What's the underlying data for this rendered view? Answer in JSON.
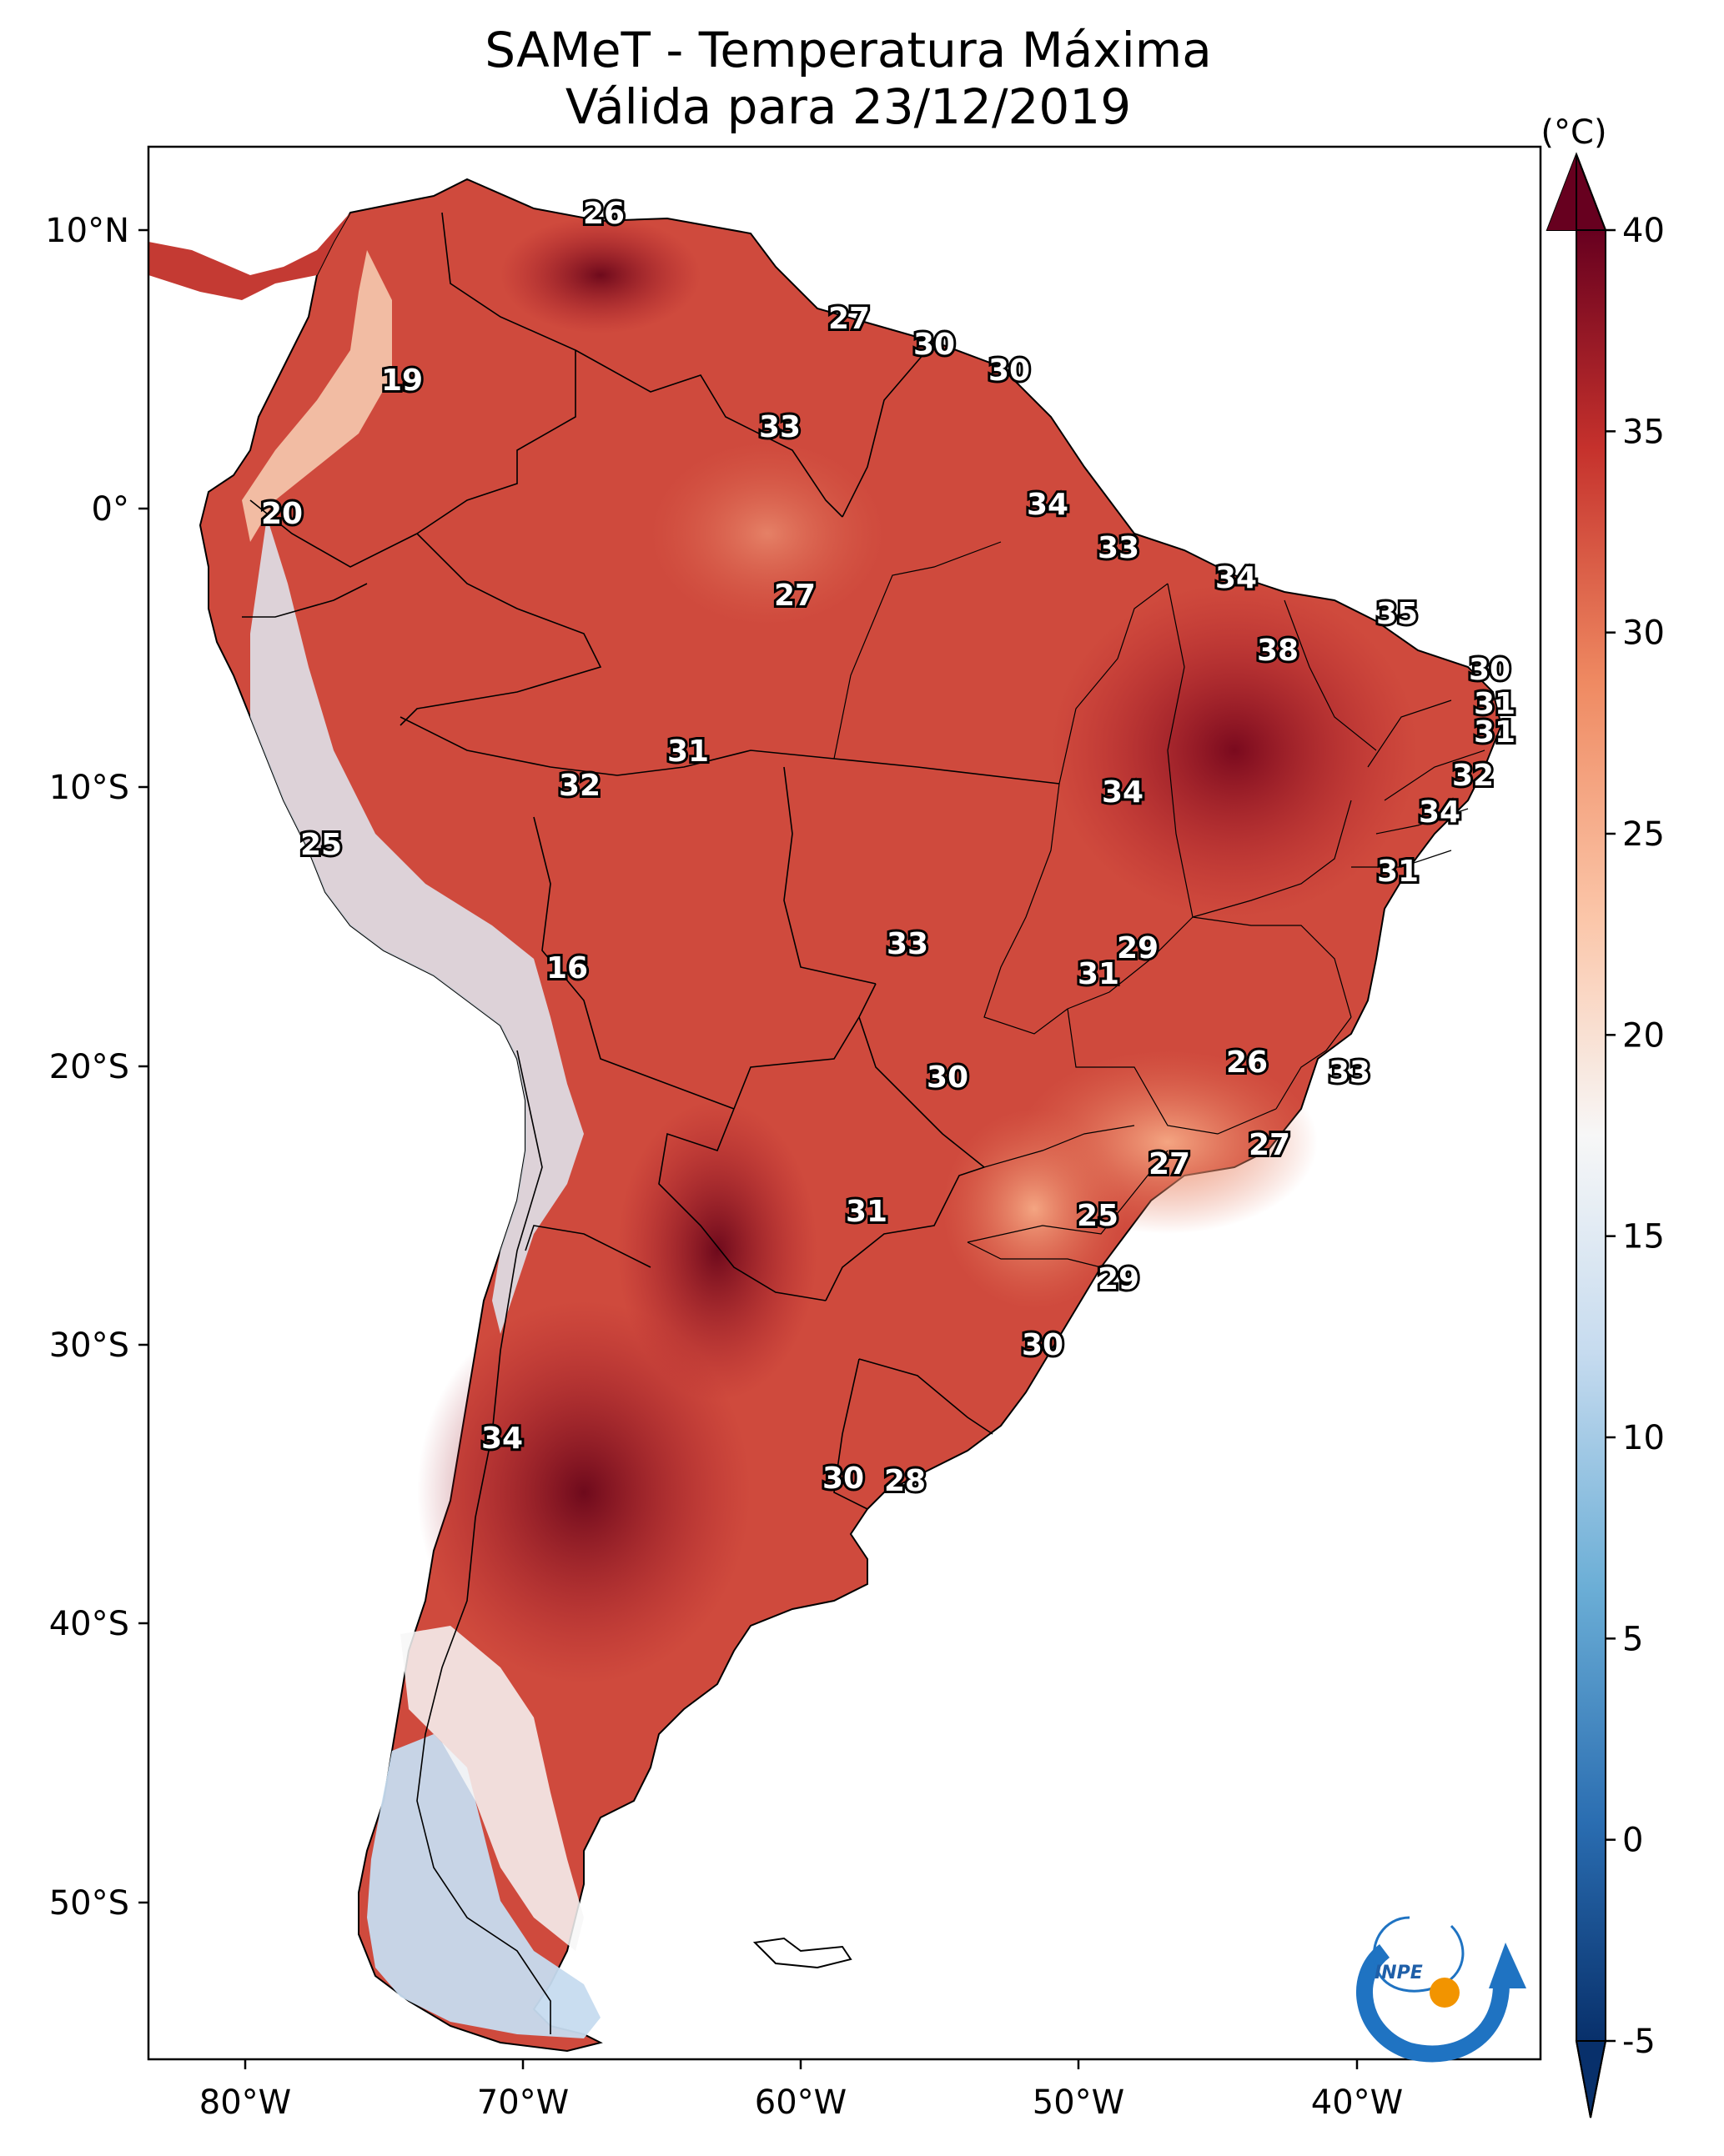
{
  "title": {
    "line1": "SAMeT - Temperatura Máxima",
    "line2": "Válida para 23/12/2019"
  },
  "axes": {
    "lon_labels": [
      "80°W",
      "70°W",
      "60°W",
      "50°W",
      "40°W"
    ],
    "lat_labels": [
      "10°N",
      "0°",
      "10°S",
      "20°S",
      "30°S",
      "40°S",
      "50°S"
    ]
  },
  "colorbar": {
    "unit": "(°C)",
    "ticks": [
      "40",
      "35",
      "30",
      "25",
      "20",
      "15",
      "10",
      "5",
      "0",
      "-5"
    ],
    "min": -5,
    "max": 40,
    "colors": {
      "cold": "#0b3b78",
      "cool": "#4f9bcb",
      "neutral": "#f7f7f7",
      "warm": "#f3a47e",
      "hot": "#c5312c",
      "hottest": "#67001f"
    }
  },
  "city_values": [
    {
      "name": "c01",
      "value": "26"
    },
    {
      "name": "c02",
      "value": "27"
    },
    {
      "name": "c03",
      "value": "30"
    },
    {
      "name": "c04",
      "value": "30"
    },
    {
      "name": "c05",
      "value": "19"
    },
    {
      "name": "c06",
      "value": "33"
    },
    {
      "name": "c07",
      "value": "34"
    },
    {
      "name": "c08",
      "value": "20"
    },
    {
      "name": "c09",
      "value": "33"
    },
    {
      "name": "c10",
      "value": "34"
    },
    {
      "name": "c11",
      "value": "27"
    },
    {
      "name": "c12",
      "value": "35"
    },
    {
      "name": "c13",
      "value": "38"
    },
    {
      "name": "c14",
      "value": "30"
    },
    {
      "name": "c15",
      "value": "31"
    },
    {
      "name": "c16",
      "value": "31"
    },
    {
      "name": "c17",
      "value": "31"
    },
    {
      "name": "c18",
      "value": "32"
    },
    {
      "name": "c19",
      "value": "32"
    },
    {
      "name": "c20",
      "value": "34"
    },
    {
      "name": "c21",
      "value": "34"
    },
    {
      "name": "c22",
      "value": "25"
    },
    {
      "name": "c23",
      "value": "31"
    },
    {
      "name": "c24",
      "value": "33"
    },
    {
      "name": "c25",
      "value": "29"
    },
    {
      "name": "c26",
      "value": "16"
    },
    {
      "name": "c27",
      "value": "31"
    },
    {
      "name": "c28",
      "value": "26"
    },
    {
      "name": "c29",
      "value": "33"
    },
    {
      "name": "c30",
      "value": "30"
    },
    {
      "name": "c31",
      "value": "27"
    },
    {
      "name": "c32",
      "value": "27"
    },
    {
      "name": "c33",
      "value": "31"
    },
    {
      "name": "c34",
      "value": "25"
    },
    {
      "name": "c35",
      "value": "29"
    },
    {
      "name": "c36",
      "value": "30"
    },
    {
      "name": "c37",
      "value": "34"
    },
    {
      "name": "c38",
      "value": "30"
    },
    {
      "name": "c39",
      "value": "28"
    }
  ],
  "logo": {
    "text": "INPE"
  }
}
